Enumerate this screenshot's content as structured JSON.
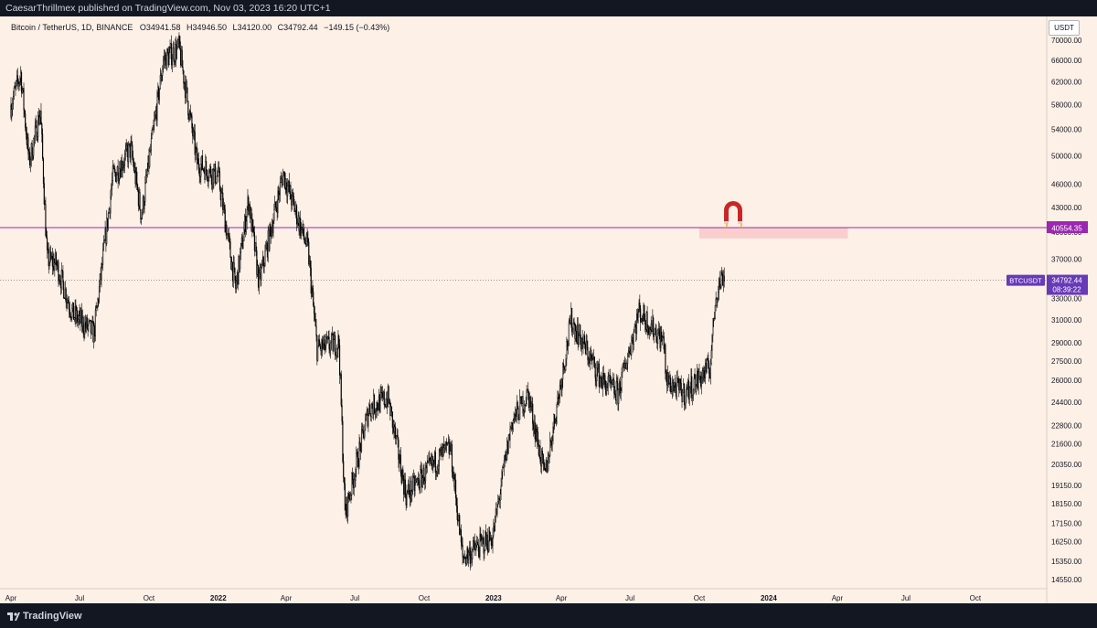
{
  "header": {
    "publish_line": "CaesarThrillmex published on TradingView.com, Nov 03, 2023 16:20 UTC+1"
  },
  "legend": {
    "symbol": "Bitcoin / TetherUS, 1D, BINANCE",
    "open_label": "O",
    "open": "34941.58",
    "high_label": "H",
    "high": "34946.50",
    "low_label": "L",
    "low": "34120.00",
    "close_label": "C",
    "close": "34792.44",
    "change": "−149.15 (−0.43%)"
  },
  "axis": {
    "currency_button": "USDT"
  },
  "footer": {
    "brand": "TradingView"
  },
  "colors": {
    "background": "#fdf0e6",
    "candle": "#000000",
    "level_line": "#9c27b0",
    "price_tag": "#673ab7",
    "zone": "#f8c8c8",
    "magnet": "#c62828"
  },
  "chart_data": {
    "type": "candlestick",
    "y_scale": "log",
    "y_ticks": [
      "70000.00",
      "66000.00",
      "62000.00",
      "58000.00",
      "54000.00",
      "50000.00",
      "46000.00",
      "43000.00",
      "40000.00",
      "37000.00",
      "35000.00",
      "33000.00",
      "31000.00",
      "29000.00",
      "27500.00",
      "26000.00",
      "24400.00",
      "22800.00",
      "21600.00",
      "20350.00",
      "19150.00",
      "18150.00",
      "17150.00",
      "16250.00",
      "15350.00",
      "14550.00"
    ],
    "x_ticks": [
      "Apr",
      "Jul",
      "Oct",
      "2022",
      "Apr",
      "Jul",
      "Oct",
      "2023",
      "Apr",
      "Jul",
      "Oct",
      "2024",
      "Apr",
      "Jul",
      "Oct"
    ],
    "x_ticks_bold": [
      "2022",
      "2023",
      "2024"
    ],
    "price_path": [
      [
        "2021-04-01",
        58000
      ],
      [
        "2021-04-14",
        63500
      ],
      [
        "2021-04-25",
        49000
      ],
      [
        "2021-05-10",
        57000
      ],
      [
        "2021-05-19",
        37000
      ],
      [
        "2021-05-31",
        36500
      ],
      [
        "2021-06-22",
        31500
      ],
      [
        "2021-07-20",
        29800
      ],
      [
        "2021-08-14",
        47000
      ],
      [
        "2021-09-07",
        51000
      ],
      [
        "2021-09-21",
        42000
      ],
      [
        "2021-10-20",
        66000
      ],
      [
        "2021-11-10",
        68500
      ],
      [
        "2021-12-04",
        49000
      ],
      [
        "2022-01-01",
        47000
      ],
      [
        "2022-01-24",
        34000
      ],
      [
        "2022-02-10",
        44000
      ],
      [
        "2022-02-24",
        34500
      ],
      [
        "2022-03-28",
        47500
      ],
      [
        "2022-04-30",
        38000
      ],
      [
        "2022-05-12",
        28500
      ],
      [
        "2022-06-10",
        29000
      ],
      [
        "2022-06-18",
        17600
      ],
      [
        "2022-07-20",
        24000
      ],
      [
        "2022-08-14",
        24700
      ],
      [
        "2022-09-07",
        18600
      ],
      [
        "2022-10-26",
        21000
      ],
      [
        "2022-11-05",
        21300
      ],
      [
        "2022-11-21",
        15500
      ],
      [
        "2022-12-31",
        16500
      ],
      [
        "2023-01-25",
        23000
      ],
      [
        "2023-02-16",
        25000
      ],
      [
        "2023-03-10",
        19600
      ],
      [
        "2023-04-14",
        31000
      ],
      [
        "2023-05-24",
        26000
      ],
      [
        "2023-06-15",
        25000
      ],
      [
        "2023-07-13",
        31800
      ],
      [
        "2023-08-16",
        29000
      ],
      [
        "2023-08-17",
        26000
      ],
      [
        "2023-09-11",
        25000
      ],
      [
        "2023-10-15",
        27000
      ],
      [
        "2023-10-23",
        33500
      ],
      [
        "2023-11-02",
        35500
      ],
      [
        "2023-11-03",
        34792
      ]
    ],
    "last_price": "34792.44",
    "last_price_symbol": "BTCUSDT",
    "countdown": "08:39:22",
    "resistance_level": "40554.35",
    "zone": {
      "from": "2023-10-01",
      "to": "2024-04-15",
      "low": 39300,
      "high": 40554
    }
  }
}
